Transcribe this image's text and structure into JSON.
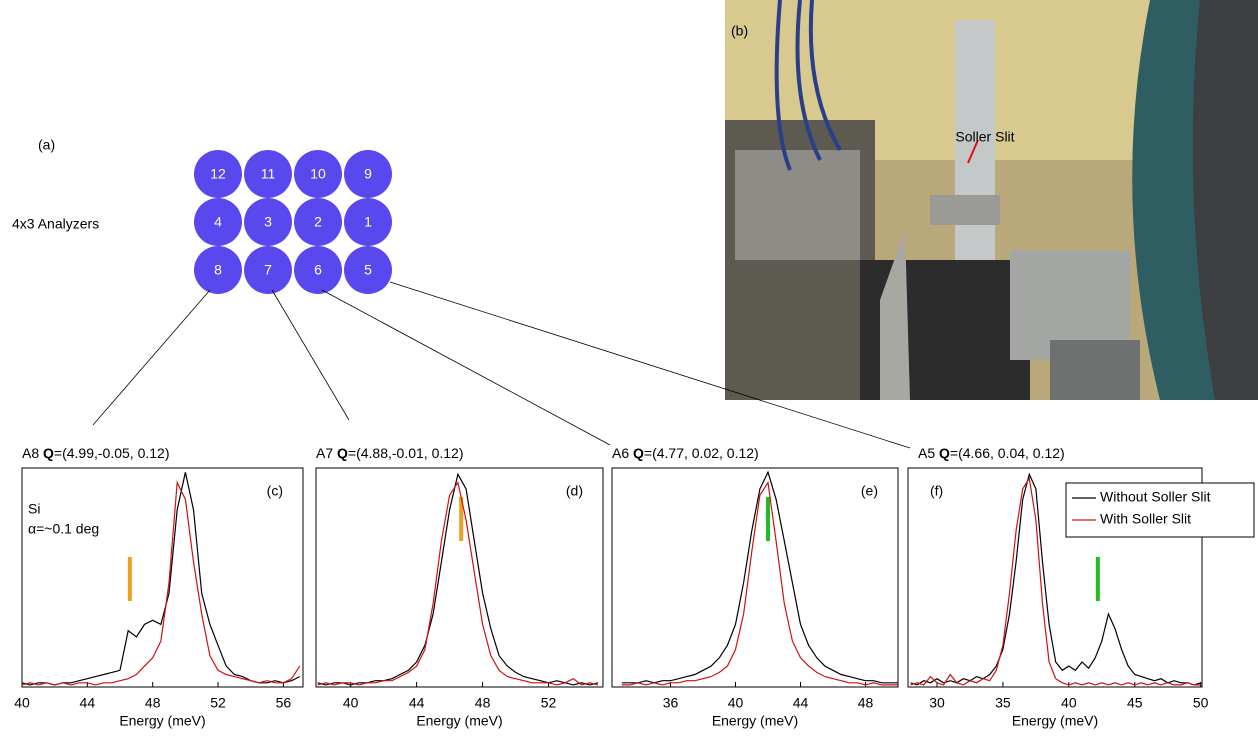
{
  "diagram": {
    "label": "(a)",
    "caption": "4x3 Analyzers",
    "color": "#5a48ef",
    "rows": [
      [
        12,
        11,
        10,
        9
      ],
      [
        4,
        3,
        2,
        1
      ],
      [
        8,
        7,
        6,
        5
      ]
    ]
  },
  "photo": {
    "label": "(b)",
    "annotation": "Soller Slit",
    "annotation_color": "#e01010"
  },
  "chart_data": [
    {
      "type": "line",
      "title_prefix": "A8 ",
      "title_bold": "Q",
      "title_rest": "=(4.99,-0.05, 0.12)",
      "panel": "(c)",
      "annotations": [
        "Si",
        "α=~0.1 deg"
      ],
      "x_label": "Energy (meV)",
      "xlim": [
        40,
        57.2
      ],
      "xticks": [
        40,
        44,
        48,
        52,
        56
      ],
      "ylim": [
        0,
        1.05
      ],
      "marker_x": 46.6,
      "marker_color": "#f0a020",
      "x": [
        40,
        40.5,
        41,
        41.5,
        42,
        42.5,
        43,
        43.5,
        44,
        44.5,
        45,
        45.5,
        46,
        46.5,
        47,
        47.5,
        48,
        48.5,
        49,
        49.5,
        50,
        50.5,
        51,
        51.5,
        52,
        52.5,
        53,
        53.5,
        54,
        54.5,
        55,
        55.5,
        56,
        56.5,
        57
      ],
      "series": [
        {
          "name": "Without Soller Slit",
          "color": "#000000",
          "values": [
            0.02,
            0.01,
            0.02,
            0.02,
            0.01,
            0.02,
            0.02,
            0.03,
            0.04,
            0.05,
            0.06,
            0.07,
            0.08,
            0.27,
            0.24,
            0.3,
            0.32,
            0.3,
            0.45,
            0.85,
            1.03,
            0.85,
            0.45,
            0.3,
            0.2,
            0.1,
            0.06,
            0.05,
            0.03,
            0.02,
            0.02,
            0.03,
            0.02,
            0.03,
            0.05
          ]
        },
        {
          "name": "With Soller Slit",
          "color": "#cc1111",
          "values": [
            0.01,
            0.02,
            0.01,
            0.02,
            0.01,
            0.02,
            0.01,
            0.02,
            0.02,
            0.01,
            0.02,
            0.02,
            0.03,
            0.04,
            0.06,
            0.1,
            0.14,
            0.22,
            0.5,
            0.98,
            0.9,
            0.6,
            0.35,
            0.15,
            0.08,
            0.06,
            0.05,
            0.04,
            0.03,
            0.02,
            0.03,
            0.02,
            0.02,
            0.04,
            0.1
          ]
        }
      ]
    },
    {
      "type": "line",
      "title_prefix": "A7 ",
      "title_bold": "Q",
      "title_rest": "=(4.88,-0.01, 0.12)",
      "panel": "(d)",
      "x_label": "Energy (meV)",
      "xlim": [
        37.9,
        55.3
      ],
      "xticks": [
        40,
        44,
        48,
        52
      ],
      "ylim": [
        0,
        1.05
      ],
      "marker_x": 46.7,
      "marker_color": "#f0a020",
      "x": [
        38,
        38.5,
        39,
        39.5,
        40,
        40.5,
        41,
        41.5,
        42,
        42.5,
        43,
        43.5,
        44,
        44.5,
        45,
        45.5,
        46,
        46.5,
        47,
        47.5,
        48,
        48.5,
        49,
        49.5,
        50,
        50.5,
        51,
        51.5,
        52,
        52.5,
        53,
        53.5,
        54,
        54.5,
        55
      ],
      "series": [
        {
          "name": "Without Soller Slit",
          "color": "#000000",
          "values": [
            0.02,
            0.01,
            0.02,
            0.02,
            0.01,
            0.02,
            0.02,
            0.03,
            0.03,
            0.04,
            0.06,
            0.08,
            0.12,
            0.2,
            0.35,
            0.6,
            0.85,
            1.02,
            0.95,
            0.7,
            0.45,
            0.28,
            0.15,
            0.1,
            0.07,
            0.05,
            0.04,
            0.03,
            0.02,
            0.03,
            0.02,
            0.01,
            0.02,
            0.01,
            0.02
          ]
        },
        {
          "name": "With Soller Slit",
          "color": "#cc1111",
          "values": [
            0.01,
            0.02,
            0.01,
            0.02,
            0.02,
            0.01,
            0.02,
            0.02,
            0.03,
            0.03,
            0.05,
            0.07,
            0.1,
            0.18,
            0.4,
            0.7,
            0.92,
            0.98,
            0.8,
            0.55,
            0.3,
            0.15,
            0.08,
            0.05,
            0.04,
            0.03,
            0.02,
            0.02,
            0.02,
            0.01,
            0.02,
            0.04,
            0.01,
            0.02,
            0.01
          ]
        }
      ]
    },
    {
      "type": "line",
      "title_prefix": "A6 ",
      "title_bold": "Q",
      "title_rest": "=(4.77, 0.02, 0.12)",
      "panel": "(e)",
      "x_label": "Energy (meV)",
      "xlim": [
        32.4,
        50
      ],
      "xticks": [
        36,
        40,
        44,
        48
      ],
      "ylim": [
        0,
        1.05
      ],
      "marker_x": 42.0,
      "marker_color": "#22bb22",
      "x": [
        33,
        33.5,
        34,
        34.5,
        35,
        35.5,
        36,
        36.5,
        37,
        37.5,
        38,
        38.5,
        39,
        39.5,
        40,
        40.5,
        41,
        41.5,
        42,
        42.5,
        43,
        43.5,
        44,
        44.5,
        45,
        45.5,
        46,
        46.5,
        47,
        47.5,
        48,
        48.5,
        49,
        49.5,
        50
      ],
      "series": [
        {
          "name": "Without Soller Slit",
          "color": "#000000",
          "values": [
            0.02,
            0.02,
            0.02,
            0.03,
            0.02,
            0.03,
            0.03,
            0.04,
            0.05,
            0.06,
            0.08,
            0.1,
            0.14,
            0.2,
            0.3,
            0.5,
            0.75,
            0.95,
            1.03,
            0.9,
            0.7,
            0.5,
            0.3,
            0.2,
            0.14,
            0.1,
            0.08,
            0.06,
            0.05,
            0.04,
            0.03,
            0.03,
            0.02,
            0.02,
            0.02
          ]
        },
        {
          "name": "With Soller Slit",
          "color": "#cc1111",
          "values": [
            0.01,
            0.01,
            0.02,
            0.01,
            0.02,
            0.01,
            0.02,
            0.02,
            0.03,
            0.03,
            0.04,
            0.05,
            0.07,
            0.1,
            0.18,
            0.35,
            0.65,
            0.92,
            0.98,
            0.7,
            0.4,
            0.22,
            0.14,
            0.1,
            0.07,
            0.05,
            0.04,
            0.03,
            0.02,
            0.02,
            0.01,
            0.02,
            0.01,
            0.01,
            0.01
          ]
        }
      ]
    },
    {
      "type": "line",
      "title_prefix": "A5 ",
      "title_bold": "Q",
      "title_rest": "=(4.66, 0.04, 0.12)",
      "panel": "(f)",
      "x_label": "Energy (meV)",
      "legend": "top-right",
      "xlim": [
        27.8,
        50.1
      ],
      "xticks": [
        30,
        35,
        40,
        45,
        50
      ],
      "ylim": [
        0,
        1.05
      ],
      "marker_x": 42.2,
      "marker_color": "#22bb22",
      "x": [
        28,
        28.5,
        29,
        29.5,
        30,
        30.5,
        31,
        31.5,
        32,
        32.5,
        33,
        33.5,
        34,
        34.5,
        35,
        35.5,
        36,
        36.5,
        37,
        37.5,
        38,
        38.5,
        39,
        39.5,
        40,
        40.5,
        41,
        41.5,
        42,
        42.5,
        43,
        43.5,
        44,
        44.5,
        45,
        45.5,
        46,
        46.5,
        47,
        47.5,
        48,
        48.5,
        49,
        49.5,
        50
      ],
      "series": [
        {
          "name": "Without Soller Slit",
          "color": "#000000",
          "values": [
            0.02,
            0.01,
            0.03,
            0.02,
            0.04,
            0.02,
            0.03,
            0.02,
            0.04,
            0.03,
            0.05,
            0.04,
            0.06,
            0.1,
            0.18,
            0.35,
            0.6,
            0.9,
            1.02,
            0.95,
            0.6,
            0.3,
            0.12,
            0.08,
            0.1,
            0.08,
            0.12,
            0.09,
            0.14,
            0.22,
            0.35,
            0.28,
            0.18,
            0.1,
            0.06,
            0.05,
            0.04,
            0.03,
            0.04,
            0.02,
            0.03,
            0.02,
            0.02,
            0.01,
            0.02
          ]
        },
        {
          "name": "With Soller Slit",
          "color": "#cc1111",
          "values": [
            0.01,
            0.02,
            0.01,
            0.05,
            0.02,
            0.01,
            0.06,
            0.02,
            0.01,
            0.03,
            0.02,
            0.04,
            0.03,
            0.08,
            0.2,
            0.45,
            0.75,
            0.95,
            1.0,
            0.8,
            0.4,
            0.12,
            0.04,
            0.02,
            0.01,
            0.02,
            0.01,
            0.02,
            0.01,
            0.02,
            0.01,
            0.02,
            0.01,
            0.02,
            0.01,
            0.02,
            0.01,
            0.02,
            0.01,
            0.02,
            0.01,
            0.01,
            0.02,
            0.01,
            0.01
          ]
        }
      ]
    }
  ]
}
